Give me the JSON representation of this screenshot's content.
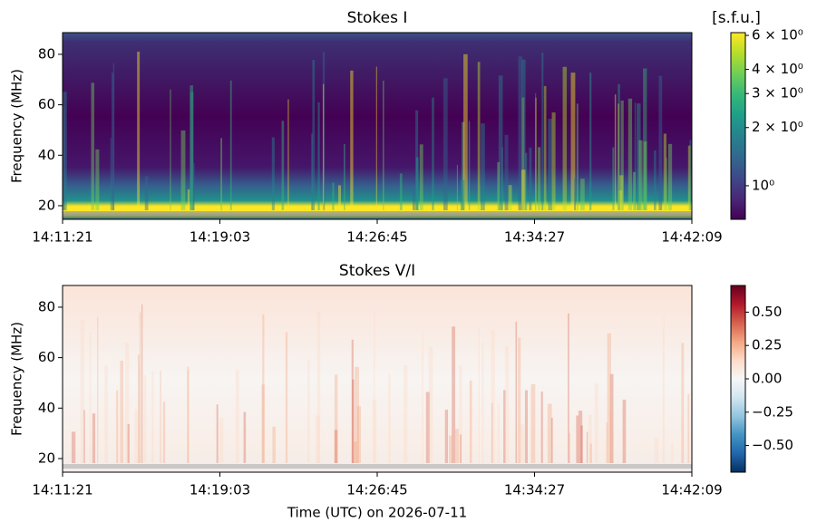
{
  "chart_data": [
    {
      "type": "spectrogram",
      "title": "Stokes I",
      "ylabel": "Frequency (MHz)",
      "xlim": [
        "14:11:21",
        "14:42:09"
      ],
      "xticks": [
        "14:11:21",
        "14:19:03",
        "14:26:45",
        "14:34:27",
        "14:42:09"
      ],
      "ylim": [
        14.6,
        88.6
      ],
      "yticks": [
        20,
        40,
        60,
        80
      ],
      "colormap": "viridis",
      "colorbar_label": "[s.f.u.]",
      "colorbar_log": true,
      "clim": [
        0.67,
        6.2
      ],
      "cticks": [
        {
          "value": 6,
          "label": "6 × 10⁰"
        },
        {
          "value": 4,
          "label": "4 × 10⁰"
        },
        {
          "value": 3,
          "label": "3 × 10⁰"
        },
        {
          "value": 2,
          "label": "2 × 10⁰"
        },
        {
          "value": 1,
          "label": "10⁰"
        }
      ]
    },
    {
      "type": "spectrogram",
      "title": "Stokes V/I",
      "ylabel": "Frequency (MHz)",
      "xlabel": "Time (UTC) on 2026-07-11",
      "xlim": [
        "14:11:21",
        "14:42:09"
      ],
      "xticks": [
        "14:11:21",
        "14:19:03",
        "14:26:45",
        "14:34:27",
        "14:42:09"
      ],
      "ylim": [
        14.6,
        88.6
      ],
      "yticks": [
        20,
        40,
        60,
        80
      ],
      "colormap": "RdBu_r",
      "colorbar_log": false,
      "clim": [
        -0.7,
        0.7
      ],
      "cticks": [
        {
          "value": 0.5,
          "label": "0.50"
        },
        {
          "value": 0.25,
          "label": "0.25"
        },
        {
          "value": 0,
          "label": "0.00"
        },
        {
          "value": -0.25,
          "label": "−0.25"
        },
        {
          "value": -0.5,
          "label": "−0.50"
        }
      ]
    }
  ]
}
